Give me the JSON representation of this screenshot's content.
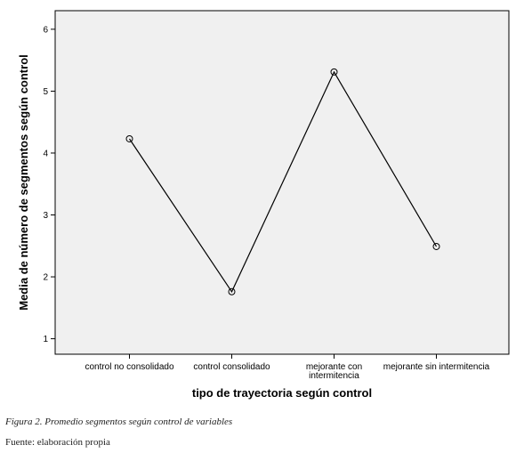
{
  "chart_data": {
    "type": "line",
    "categories": [
      "control no consolidado",
      "control consolidado",
      "mejorante con intermitencia",
      "mejorante sin intermitencia"
    ],
    "category_lines": [
      [
        "control no consolidado"
      ],
      [
        "control consolidado"
      ],
      [
        "mejorante con",
        "intermitencia"
      ],
      [
        "mejorante sin intermitencia"
      ]
    ],
    "values": [
      4.23,
      1.76,
      5.31,
      2.49
    ],
    "xlabel": "tipo de trayectoria según control",
    "ylabel": "Media de número de segmentos según control",
    "ylim": [
      0.75,
      6.3
    ],
    "yticks": [
      1,
      2,
      3,
      4,
      5,
      6
    ],
    "plot_background": "#f0f0f0",
    "line_color": "#000000",
    "grid": false,
    "marker": "open-circle"
  },
  "caption": {
    "figure": "Figura 2. Promedio segmentos según control de variables",
    "source": "Fuente: elaboración propia"
  }
}
